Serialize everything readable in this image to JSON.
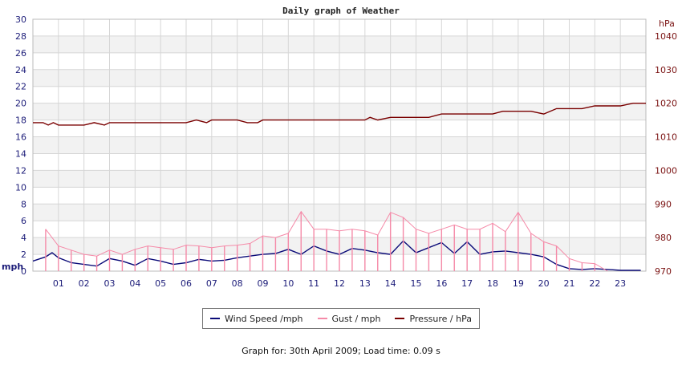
{
  "chart_data": {
    "type": "line",
    "title": "Daily graph of Weather",
    "left_axis": {
      "unit_label": "mph",
      "ylim": [
        0,
        30
      ],
      "ticks": [
        "0",
        "2",
        "4",
        "6",
        "8",
        "10",
        "12",
        "14",
        "16",
        "18",
        "20",
        "22",
        "24",
        "26",
        "28",
        "30"
      ]
    },
    "right_axis": {
      "unit_label": "hPa",
      "ylim": [
        970,
        1045
      ],
      "ticks": [
        "970",
        "980",
        "990",
        "1000",
        "1010",
        "1020",
        "1030",
        "1040"
      ]
    },
    "x_axis": {
      "xlim": [
        0,
        24
      ],
      "tick_labels": [
        "01",
        "02",
        "03",
        "04",
        "05",
        "06",
        "07",
        "08",
        "09",
        "10",
        "11",
        "12",
        "13",
        "14",
        "15",
        "16",
        "17",
        "18",
        "19",
        "20",
        "21",
        "22",
        "23"
      ]
    },
    "grid": true,
    "legend_position": "bottom",
    "series": [
      {
        "name": "Wind Speed /mph",
        "axis": "left",
        "color": "#0a0a78",
        "x": [
          0,
          0.5,
          0.75,
          1,
          1.5,
          2,
          2.5,
          3,
          3.5,
          4,
          4.5,
          5,
          5.5,
          6,
          6.5,
          7,
          7.5,
          8,
          8.5,
          9,
          9.5,
          10,
          10.5,
          11,
          11.5,
          12,
          12.5,
          13,
          13.5,
          14,
          14.5,
          15,
          15.5,
          16,
          16.5,
          17,
          17.5,
          18,
          18.5,
          19,
          19.5,
          20,
          20.5,
          21,
          21.5,
          22,
          22.5,
          23,
          23.8
        ],
        "values": [
          1.2,
          1.7,
          2.2,
          1.6,
          1.0,
          0.8,
          0.6,
          1.5,
          1.2,
          0.7,
          1.5,
          1.2,
          0.8,
          1.0,
          1.4,
          1.2,
          1.3,
          1.6,
          1.8,
          2.0,
          2.1,
          2.6,
          2.0,
          3.0,
          2.4,
          2.0,
          2.7,
          2.5,
          2.2,
          2.0,
          3.6,
          2.2,
          2.8,
          3.4,
          2.1,
          3.5,
          2.0,
          2.3,
          2.4,
          2.2,
          2.0,
          1.7,
          0.8,
          0.3,
          0.2,
          0.3,
          0.2,
          0.1,
          0.1
        ]
      },
      {
        "name": "Gust / mph",
        "axis": "left",
        "color": "#f58aa8",
        "x": [
          0.5,
          1,
          1.5,
          2,
          2.5,
          3,
          3.5,
          4,
          4.5,
          5,
          5.5,
          6,
          6.5,
          7,
          7.5,
          8,
          8.5,
          9,
          9.5,
          10,
          10.5,
          11,
          11.5,
          12,
          12.5,
          13,
          13.5,
          14,
          14.5,
          15,
          15.5,
          16,
          16.5,
          17,
          17.5,
          18,
          18.5,
          19,
          19.5,
          20,
          20.5,
          21,
          21.5,
          22,
          22.5
        ],
        "values": [
          5.0,
          3.0,
          2.5,
          2.0,
          1.8,
          2.5,
          2.0,
          2.6,
          3.0,
          2.8,
          2.6,
          3.1,
          3.0,
          2.8,
          3.0,
          3.1,
          3.3,
          4.2,
          4.0,
          4.5,
          7.1,
          5.0,
          5.0,
          4.8,
          5.0,
          4.8,
          4.3,
          7.0,
          6.4,
          5.0,
          4.5,
          5.0,
          5.5,
          5.0,
          5.0,
          5.7,
          4.7,
          7.0,
          4.5,
          3.5,
          3.0,
          1.5,
          1.0,
          0.9,
          0
        ]
      },
      {
        "name": "Pressure / hPa",
        "axis": "right",
        "color": "#7a0000",
        "x": [
          0,
          0.4,
          0.6,
          0.8,
          1.0,
          1.5,
          2.0,
          2.4,
          2.8,
          3.0,
          3.5,
          4,
          5,
          6,
          6.4,
          6.8,
          7,
          8,
          8.4,
          8.8,
          9,
          10,
          11,
          12,
          13,
          13.2,
          13.5,
          14,
          15,
          15.5,
          16,
          17,
          18,
          18.4,
          18.8,
          19.5,
          20,
          20.5,
          21,
          21.5,
          22,
          22.5,
          23,
          23.5,
          24
        ],
        "values": [
          1014.2,
          1014.2,
          1013.5,
          1014.2,
          1013.5,
          1013.5,
          1013.5,
          1014.2,
          1013.5,
          1014.2,
          1014.2,
          1014.2,
          1014.2,
          1014.2,
          1015.0,
          1014.2,
          1015.0,
          1015.0,
          1014.2,
          1014.2,
          1015.0,
          1015.0,
          1015.0,
          1015.0,
          1015.0,
          1015.8,
          1015.0,
          1015.8,
          1015.8,
          1015.8,
          1016.8,
          1016.8,
          1016.8,
          1017.6,
          1017.6,
          1017.6,
          1016.8,
          1018.4,
          1018.4,
          1018.4,
          1019.2,
          1019.2,
          1019.2,
          1020.0,
          1020.0
        ]
      }
    ]
  },
  "legend": {
    "wind_label": "Wind Speed /mph",
    "gust_label": "Gust / mph",
    "pressure_label": "Pressure / hPa"
  },
  "footer": {
    "text": "Graph for:  30th April 2009; Load time: 0.09 s"
  }
}
